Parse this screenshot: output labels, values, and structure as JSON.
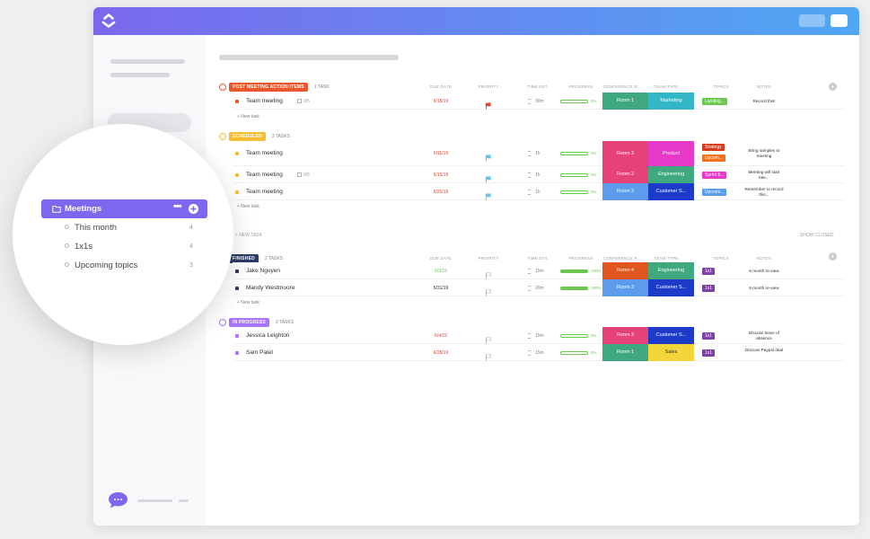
{
  "colors": {
    "brand_purple": "#7b68ee",
    "brand_blue": "#4fa8f3",
    "progress_green": "#6bc950"
  },
  "header": {
    "show_closed": "SHOW CLOSED",
    "new_task": "+ NEW TASK"
  },
  "columns": [
    "DUE DATE",
    "PRIORITY",
    "TIME EST.",
    "PROGRESS",
    "CONFERENCE R...",
    "TEAM TYPE",
    "TOPICS",
    "NOTES"
  ],
  "new_task_label": "+ New task",
  "groups": [
    {
      "badge": "POST MEETING ACTION ITEMS",
      "color": "#e8582c",
      "count": "1 TASK",
      "rows": [
        {
          "name": "Team meeting",
          "sub": "0/5",
          "dot": "#e8582c",
          "due": "6/18/19",
          "due_color": "#e44332",
          "priority_icon": "flag-red",
          "time": "30m",
          "progress": 0,
          "progress_label": "0%",
          "room": "Room 1",
          "room_color": "#3fa87e",
          "team": "Marketing",
          "team_color": "#33b7c6",
          "topics": [
            "Landing..."
          ],
          "topic_colors": [
            "#6bc950"
          ],
          "notes": "Record this!"
        }
      ]
    },
    {
      "badge": "SCHEDULED",
      "color": "#f9be33",
      "count": "3 TASKS",
      "rows": [
        {
          "name": "Team meeting",
          "sub": "",
          "dot": "#f9be33",
          "due": "6/11/19",
          "due_color": "#e44332",
          "priority_icon": "flag-cyan",
          "time": "1h",
          "progress": 0,
          "progress_label": "0%",
          "room": "Room 2",
          "room_color": "#e5417a",
          "team": "Product",
          "team_color": "#e838c8",
          "topics": [
            "Strategy",
            "Upcom..."
          ],
          "topic_colors": [
            "#d63a1e",
            "#f2711c"
          ],
          "notes": "Bring samples to meeting"
        },
        {
          "name": "Team meeting",
          "sub": "0/5",
          "dot": "#f9be33",
          "due": "6/13/19",
          "due_color": "#e44332",
          "priority_icon": "flag-cyan",
          "time": "1h",
          "progress": 0,
          "progress_label": "0%",
          "room": "Room 2",
          "room_color": "#e5417a",
          "team": "Engineering",
          "team_color": "#3fa87e",
          "topics": [
            "Sprint fi..."
          ],
          "topic_colors": [
            "#e838c8"
          ],
          "notes": "Meeting will start late..."
        },
        {
          "name": "Team meeting",
          "sub": "",
          "dot": "#f9be33",
          "due": "6/20/19",
          "due_color": "#e44332",
          "priority_icon": "flag-cyan",
          "time": "1h",
          "progress": 0,
          "progress_label": "0%",
          "room": "Room 3",
          "room_color": "#5d9cec",
          "team": "Customer S...",
          "team_color": "#1e3ac8",
          "topics": [
            "Upcomi..."
          ],
          "topic_colors": [
            "#5d9cec"
          ],
          "notes": "Remember to record this..."
        }
      ]
    },
    {
      "badge": "FINISHED",
      "color": "#2b3a67",
      "count": "2 TASKS",
      "rows": [
        {
          "name": "Jake Nguyen",
          "sub": "",
          "dot": "#2b3a67",
          "due": "6/3/19",
          "due_color": "#6bc950",
          "priority_icon": "flag-grey",
          "time": "15m",
          "progress": 100,
          "progress_label": "100%",
          "room": "Room 4",
          "room_color": "#e0561e",
          "team": "Engineering",
          "team_color": "#3fa87e",
          "topics": [
            "1x1"
          ],
          "topic_colors": [
            "#7d3fa8"
          ],
          "notes": "6 month re-view"
        },
        {
          "name": "Mandy Westmoore",
          "sub": "",
          "dot": "#2b3a67",
          "due": "5/31/19",
          "due_color": "#2a2e34",
          "priority_icon": "flag-grey",
          "time": "20m",
          "progress": 100,
          "progress_label": "100%",
          "room": "Room 3",
          "room_color": "#5d9cec",
          "team": "Customer S...",
          "team_color": "#1e3ac8",
          "topics": [
            "1x1"
          ],
          "topic_colors": [
            "#7d3fa8"
          ],
          "notes": "6 month re-view"
        }
      ]
    },
    {
      "badge": "IN PROGRESS",
      "color": "#a875ff",
      "count": "2 TASKS",
      "rows": [
        {
          "name": "Jessica Leighton",
          "sub": "",
          "dot": "#a875ff",
          "due": "6/4/19",
          "due_color": "#e44332",
          "priority_icon": "flag-grey",
          "time": "15m",
          "progress": 0,
          "progress_label": "0%",
          "room": "Room 2",
          "room_color": "#e5417a",
          "team": "Customer S...",
          "team_color": "#1e3ac8",
          "topics": [
            "1x1"
          ],
          "topic_colors": [
            "#7d3fa8"
          ],
          "notes": "Discuss leave of absence"
        },
        {
          "name": "Sam Patel",
          "sub": "",
          "dot": "#a875ff",
          "due": "6/28/19",
          "due_color": "#e44332",
          "priority_icon": "flag-grey",
          "time": "15m",
          "progress": 0,
          "progress_label": "0%",
          "room": "Room 1",
          "room_color": "#3fa87e",
          "team": "Sales",
          "team_color": "#f4d63a",
          "topics": [
            "1x1"
          ],
          "topic_colors": [
            "#7d3fa8"
          ],
          "notes": "Discuss Paypal deal"
        }
      ]
    }
  ],
  "lens": {
    "active": {
      "label": "Meetings",
      "icon": "folder-icon"
    },
    "items": [
      {
        "label": "This month",
        "count": "4"
      },
      {
        "label": "1x1s",
        "count": "4"
      },
      {
        "label": "Upcoming topics",
        "count": "3"
      }
    ]
  }
}
